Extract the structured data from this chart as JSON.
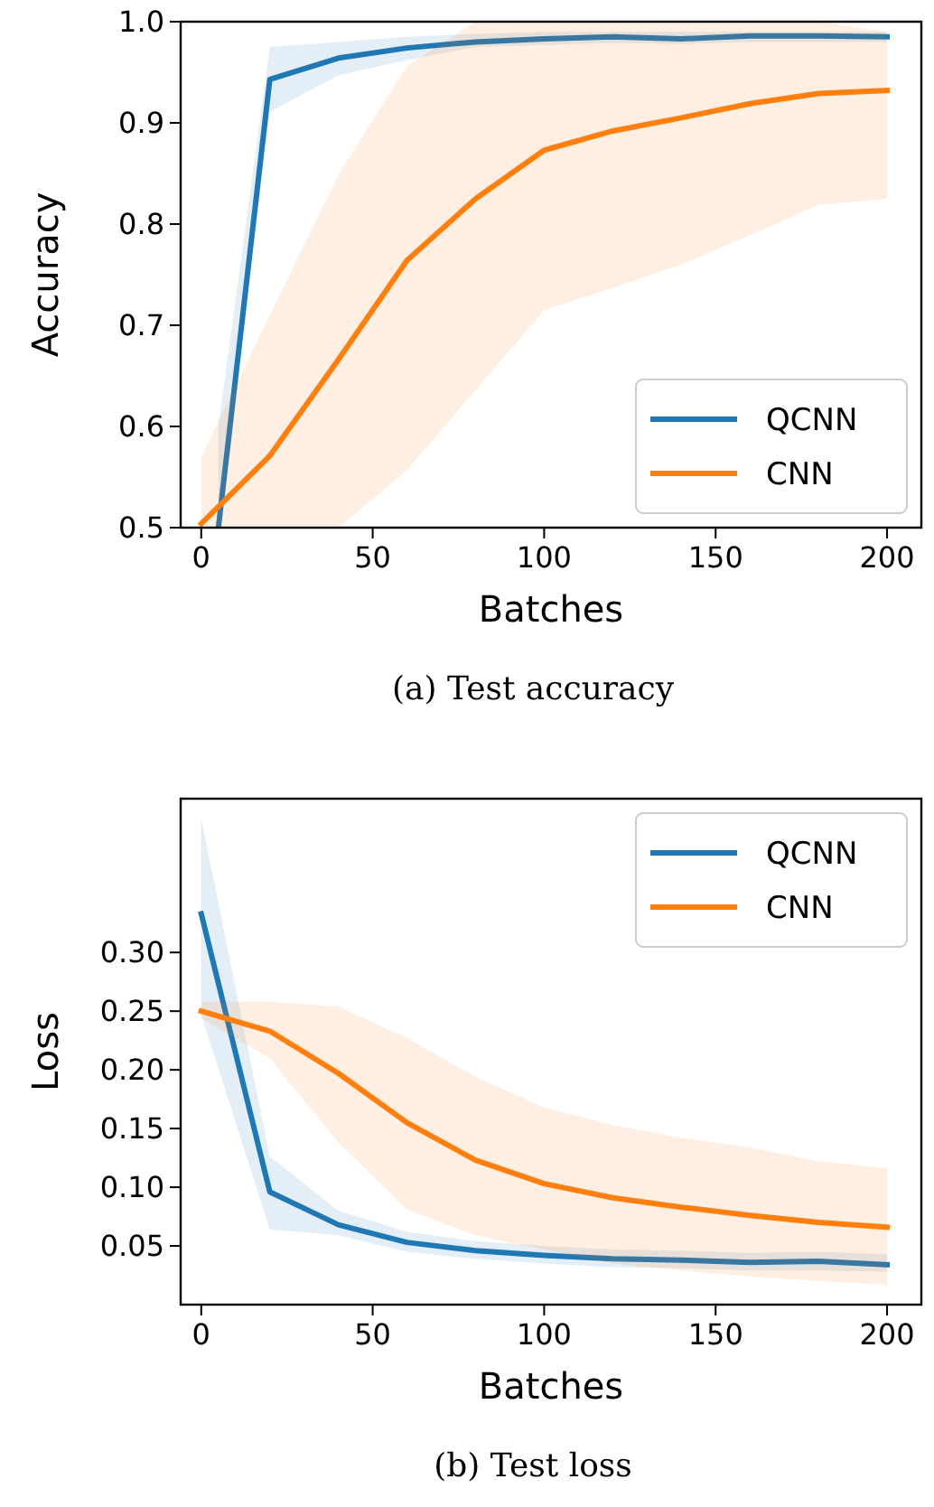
{
  "chart_data": [
    {
      "type": "line",
      "xlabel": "Batches",
      "ylabel": "Accuracy",
      "annotations": [
        "(a) Test accuracy"
      ],
      "x": [
        0,
        20,
        40,
        60,
        80,
        100,
        120,
        140,
        160,
        180,
        200
      ],
      "xlim": [
        -6,
        210
      ],
      "ylim": [
        0.5,
        1.0
      ],
      "xticks": [
        0,
        50,
        100,
        150,
        200
      ],
      "yticks": [
        {
          "value": 0.5,
          "label": "0.5"
        },
        {
          "value": 0.6,
          "label": "0.6"
        },
        {
          "value": 0.7,
          "label": "0.7"
        },
        {
          "value": 0.8,
          "label": "0.8"
        },
        {
          "value": 0.9,
          "label": "0.9"
        },
        {
          "value": 1.0,
          "label": "1.0"
        }
      ],
      "grid": false,
      "legend": "bottom right",
      "marker": "none",
      "line_style": "solid",
      "series": [
        {
          "name": "QCNN",
          "color": "#1f77b4",
          "x": [
            5,
            20,
            40,
            60,
            80,
            100,
            120,
            140,
            160,
            180,
            200
          ],
          "values": [
            0.5,
            0.943,
            0.964,
            0.974,
            0.98,
            0.983,
            0.985,
            0.983,
            0.986,
            0.986,
            0.985
          ],
          "lower": [
            0.5,
            0.911,
            0.947,
            0.962,
            0.975,
            0.977,
            0.979,
            0.978,
            0.98,
            0.98,
            0.98
          ],
          "upper": [
            0.6,
            0.975,
            0.98,
            0.985,
            0.988,
            0.99,
            0.99,
            0.99,
            0.99,
            0.99,
            0.99
          ]
        },
        {
          "name": "CNN",
          "color": "#ff7f0e",
          "values": [
            0.504,
            0.571,
            0.666,
            0.764,
            0.825,
            0.873,
            0.892,
            0.905,
            0.919,
            0.929,
            0.932
          ],
          "lower": [
            0.5,
            0.5,
            0.5,
            0.557,
            0.636,
            0.715,
            0.737,
            0.76,
            0.789,
            0.819,
            0.825
          ],
          "upper": [
            0.57,
            0.71,
            0.849,
            0.956,
            1.0,
            1.0,
            1.0,
            1.0,
            1.0,
            1.0,
            0.99
          ]
        }
      ]
    },
    {
      "type": "line",
      "xlabel": "Batches",
      "ylabel": "Loss",
      "annotations": [
        "(b) Test loss"
      ],
      "x": [
        0,
        20,
        40,
        60,
        80,
        100,
        120,
        140,
        160,
        180,
        200
      ],
      "xlim": [
        -6,
        210
      ],
      "ylim": [
        0,
        0.431
      ],
      "xticks": [
        0,
        50,
        100,
        150,
        200
      ],
      "yticks": [
        {
          "value": 0.05,
          "label": "0.05"
        },
        {
          "value": 0.1,
          "label": "0.10"
        },
        {
          "value": 0.15,
          "label": "0.15"
        },
        {
          "value": 0.2,
          "label": "0.20"
        },
        {
          "value": 0.25,
          "label": "0.25"
        },
        {
          "value": 0.3,
          "label": "0.30"
        }
      ],
      "grid": false,
      "legend": "top right",
      "marker": "none",
      "line_style": "solid",
      "series": [
        {
          "name": "QCNN",
          "color": "#1f77b4",
          "values": [
            0.333,
            0.096,
            0.068,
            0.053,
            0.046,
            0.042,
            0.039,
            0.038,
            0.036,
            0.037,
            0.034
          ],
          "lower": [
            0.247,
            0.064,
            0.059,
            0.045,
            0.039,
            0.035,
            0.032,
            0.031,
            0.029,
            0.029,
            0.028
          ],
          "upper": [
            0.414,
            0.126,
            0.08,
            0.062,
            0.054,
            0.05,
            0.047,
            0.046,
            0.044,
            0.045,
            0.043
          ]
        },
        {
          "name": "CNN",
          "color": "#ff7f0e",
          "values": [
            0.25,
            0.233,
            0.197,
            0.155,
            0.123,
            0.103,
            0.091,
            0.083,
            0.076,
            0.07,
            0.066
          ],
          "lower": [
            0.244,
            0.21,
            0.138,
            0.081,
            0.059,
            0.047,
            0.035,
            0.029,
            0.024,
            0.02,
            0.017
          ],
          "upper": [
            0.258,
            0.258,
            0.254,
            0.227,
            0.194,
            0.168,
            0.153,
            0.142,
            0.134,
            0.122,
            0.116
          ]
        }
      ]
    }
  ]
}
